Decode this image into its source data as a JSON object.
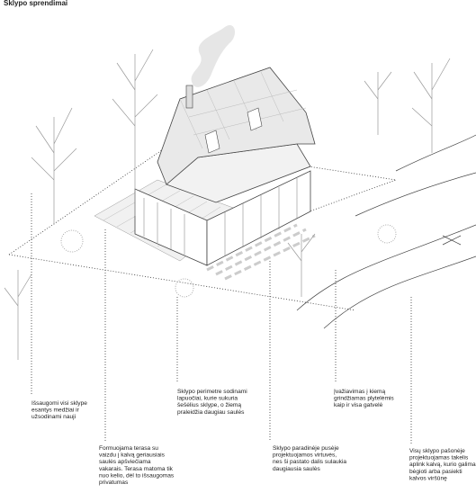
{
  "header": {
    "title": "Sklypo sprendimai"
  },
  "annotations": [
    {
      "lines": [
        "Išsaugomi visi sklype",
        "esantys medžiai ir",
        "užsodinami nauji"
      ]
    },
    {
      "lines": [
        "Formuojama terasa su",
        "vaizdu į kalvą geriausiais",
        "saulės apšviečiama",
        "vakarais. Terasa matoma tik",
        "nuo kelio, dėl to išsaugomas",
        "privatumas"
      ]
    },
    {
      "lines": [
        "Sklypo perimetre sodinami",
        "lapuočiai, kurie sukuria",
        "šešėlius sklype, o žiemą",
        "praleidžia daugiau saulės"
      ]
    },
    {
      "lines": [
        "Įvažiavimas į kiemą",
        "grindžiamas plytelėmis",
        "kaip ir visa gatvelė"
      ]
    },
    {
      "lines": [
        "Sklypo paradinėje pusėje",
        "projektuojamos virtuvės,",
        "nes ši pastato dalis sulaukia",
        "daugiausia saulės"
      ]
    },
    {
      "lines": [
        "Visų sklypo pašonėje",
        "projektuojamas takelis",
        "aplink kalvą, kurio galima",
        "bėgioti arba pasiekti",
        "kalvos viršūnę"
      ]
    }
  ]
}
